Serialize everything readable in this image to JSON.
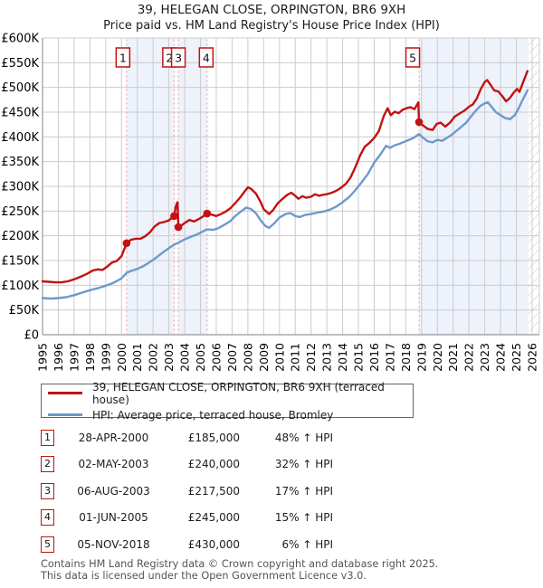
{
  "page": {
    "title_line1": "39, HELEGAN CLOSE, ORPINGTON, BR6 9XH",
    "title_line2": "Price paid vs. HM Land Registry's House Price Index (HPI)"
  },
  "chart_data": {
    "type": "line",
    "title": "Price paid vs. HM Land Registry's House Price Index (HPI)",
    "unit": "GBP thousands",
    "x_range": [
      1995,
      2026
    ],
    "ylim": [
      0,
      600
    ],
    "grid": true,
    "x_ticks": [
      1995,
      1996,
      1997,
      1998,
      1999,
      2000,
      2001,
      2002,
      2003,
      2004,
      2005,
      2006,
      2007,
      2008,
      2009,
      2010,
      2011,
      2012,
      2013,
      2014,
      2015,
      2016,
      2017,
      2018,
      2019,
      2020,
      2021,
      2022,
      2023,
      2024,
      2025,
      2026
    ],
    "y_tick_values": [
      0,
      50,
      100,
      150,
      200,
      250,
      300,
      350,
      400,
      450,
      500,
      550,
      600
    ],
    "y_tick_labels": [
      "£0",
      "£50K",
      "£100K",
      "£150K",
      "£200K",
      "£250K",
      "£300K",
      "£350K",
      "£400K",
      "£450K",
      "£500K",
      "£550K",
      "£600K"
    ],
    "series": [
      {
        "name": "39, HELEGAN CLOSE, ORPINGTON, BR6 9XH (terraced house)",
        "color": "#c21212",
        "points": [
          [
            1995.0,
            108
          ],
          [
            1995.4,
            107
          ],
          [
            1995.8,
            106
          ],
          [
            1996.2,
            106
          ],
          [
            1996.6,
            108
          ],
          [
            1997.0,
            112
          ],
          [
            1997.4,
            117
          ],
          [
            1997.8,
            123
          ],
          [
            1998.2,
            130
          ],
          [
            1998.5,
            132
          ],
          [
            1998.8,
            131
          ],
          [
            1999.1,
            138
          ],
          [
            1999.4,
            146
          ],
          [
            1999.7,
            149
          ],
          [
            2000.0,
            159
          ],
          [
            2000.32,
            185
          ],
          [
            2000.6,
            192
          ],
          [
            2000.9,
            194
          ],
          [
            2001.2,
            194
          ],
          [
            2001.5,
            199
          ],
          [
            2001.8,
            207
          ],
          [
            2002.1,
            219
          ],
          [
            2002.4,
            226
          ],
          [
            2002.7,
            228
          ],
          [
            2003.0,
            231
          ],
          [
            2003.33,
            240
          ],
          [
            2003.45,
            261
          ],
          [
            2003.55,
            268
          ],
          [
            2003.6,
            217.5
          ],
          [
            2003.8,
            221
          ],
          [
            2004.0,
            226
          ],
          [
            2004.3,
            232
          ],
          [
            2004.6,
            229
          ],
          [
            2004.9,
            234
          ],
          [
            2005.2,
            240
          ],
          [
            2005.42,
            245
          ],
          [
            2005.7,
            243
          ],
          [
            2006.0,
            240
          ],
          [
            2006.3,
            244
          ],
          [
            2006.6,
            249
          ],
          [
            2006.9,
            256
          ],
          [
            2007.2,
            266
          ],
          [
            2007.5,
            277
          ],
          [
            2007.8,
            290
          ],
          [
            2008.0,
            298
          ],
          [
            2008.2,
            295
          ],
          [
            2008.5,
            286
          ],
          [
            2008.8,
            269
          ],
          [
            2009.0,
            254
          ],
          [
            2009.35,
            244
          ],
          [
            2009.6,
            252
          ],
          [
            2009.9,
            266
          ],
          [
            2010.2,
            275
          ],
          [
            2010.5,
            283
          ],
          [
            2010.75,
            287
          ],
          [
            2011.0,
            281
          ],
          [
            2011.2,
            275
          ],
          [
            2011.45,
            280
          ],
          [
            2011.7,
            277
          ],
          [
            2012.0,
            279
          ],
          [
            2012.25,
            284
          ],
          [
            2012.5,
            281
          ],
          [
            2012.75,
            283
          ],
          [
            2013.0,
            284
          ],
          [
            2013.3,
            287
          ],
          [
            2013.6,
            291
          ],
          [
            2013.9,
            297
          ],
          [
            2014.2,
            305
          ],
          [
            2014.5,
            318
          ],
          [
            2014.8,
            338
          ],
          [
            2015.1,
            362
          ],
          [
            2015.4,
            380
          ],
          [
            2015.7,
            388
          ],
          [
            2016.0,
            398
          ],
          [
            2016.3,
            412
          ],
          [
            2016.6,
            442
          ],
          [
            2016.85,
            458
          ],
          [
            2017.05,
            444
          ],
          [
            2017.3,
            451
          ],
          [
            2017.55,
            448
          ],
          [
            2017.8,
            455
          ],
          [
            2018.05,
            458
          ],
          [
            2018.3,
            460
          ],
          [
            2018.55,
            456
          ],
          [
            2018.8,
            470
          ],
          [
            2018.84,
            430
          ],
          [
            2019.1,
            423
          ],
          [
            2019.4,
            416
          ],
          [
            2019.7,
            414
          ],
          [
            2019.95,
            426
          ],
          [
            2020.2,
            429
          ],
          [
            2020.5,
            421
          ],
          [
            2020.8,
            429
          ],
          [
            2021.1,
            441
          ],
          [
            2021.4,
            447
          ],
          [
            2021.7,
            453
          ],
          [
            2022.0,
            461
          ],
          [
            2022.25,
            466
          ],
          [
            2022.5,
            478
          ],
          [
            2022.75,
            497
          ],
          [
            2023.0,
            511
          ],
          [
            2023.15,
            515
          ],
          [
            2023.35,
            506
          ],
          [
            2023.6,
            494
          ],
          [
            2023.85,
            492
          ],
          [
            2024.1,
            483
          ],
          [
            2024.35,
            472
          ],
          [
            2024.6,
            479
          ],
          [
            2024.85,
            490
          ],
          [
            2025.05,
            497
          ],
          [
            2025.2,
            491
          ],
          [
            2025.4,
            508
          ],
          [
            2025.7,
            533
          ]
        ]
      },
      {
        "name": "HPI: Average price, terraced house, Bromley",
        "color": "#6d99cc",
        "points": [
          [
            1995.0,
            74
          ],
          [
            1995.5,
            73
          ],
          [
            1996.0,
            74
          ],
          [
            1996.5,
            76
          ],
          [
            1997.0,
            80
          ],
          [
            1997.5,
            85
          ],
          [
            1998.0,
            90
          ],
          [
            1998.5,
            94
          ],
          [
            1999.0,
            99
          ],
          [
            1999.5,
            105
          ],
          [
            2000.0,
            114
          ],
          [
            2000.32,
            125
          ],
          [
            2000.6,
            129
          ],
          [
            2001.0,
            133
          ],
          [
            2001.4,
            139
          ],
          [
            2001.8,
            147
          ],
          [
            2002.2,
            156
          ],
          [
            2002.6,
            166
          ],
          [
            2003.0,
            175
          ],
          [
            2003.33,
            182
          ],
          [
            2003.6,
            186
          ],
          [
            2004.0,
            193
          ],
          [
            2004.4,
            198
          ],
          [
            2004.8,
            203
          ],
          [
            2005.1,
            208
          ],
          [
            2005.42,
            213
          ],
          [
            2005.8,
            212
          ],
          [
            2006.1,
            215
          ],
          [
            2006.5,
            222
          ],
          [
            2006.9,
            230
          ],
          [
            2007.2,
            240
          ],
          [
            2007.6,
            250
          ],
          [
            2007.9,
            257
          ],
          [
            2008.2,
            254
          ],
          [
            2008.5,
            246
          ],
          [
            2008.8,
            232
          ],
          [
            2009.1,
            220
          ],
          [
            2009.35,
            216
          ],
          [
            2009.7,
            226
          ],
          [
            2010.0,
            237
          ],
          [
            2010.4,
            244
          ],
          [
            2010.7,
            246
          ],
          [
            2011.0,
            240
          ],
          [
            2011.3,
            238
          ],
          [
            2011.6,
            242
          ],
          [
            2012.0,
            244
          ],
          [
            2012.4,
            247
          ],
          [
            2012.8,
            249
          ],
          [
            2013.2,
            253
          ],
          [
            2013.6,
            259
          ],
          [
            2014.0,
            268
          ],
          [
            2014.4,
            278
          ],
          [
            2014.8,
            292
          ],
          [
            2015.2,
            308
          ],
          [
            2015.6,
            325
          ],
          [
            2016.0,
            348
          ],
          [
            2016.4,
            365
          ],
          [
            2016.75,
            382
          ],
          [
            2017.0,
            378
          ],
          [
            2017.3,
            383
          ],
          [
            2017.6,
            386
          ],
          [
            2017.9,
            390
          ],
          [
            2018.2,
            394
          ],
          [
            2018.5,
            398
          ],
          [
            2018.84,
            406
          ],
          [
            2019.1,
            398
          ],
          [
            2019.4,
            391
          ],
          [
            2019.7,
            389
          ],
          [
            2020.0,
            394
          ],
          [
            2020.3,
            392
          ],
          [
            2020.6,
            398
          ],
          [
            2020.9,
            404
          ],
          [
            2021.2,
            412
          ],
          [
            2021.5,
            420
          ],
          [
            2021.8,
            428
          ],
          [
            2022.1,
            440
          ],
          [
            2022.4,
            452
          ],
          [
            2022.7,
            462
          ],
          [
            2023.0,
            468
          ],
          [
            2023.2,
            470
          ],
          [
            2023.45,
            460
          ],
          [
            2023.7,
            450
          ],
          [
            2024.0,
            444
          ],
          [
            2024.3,
            438
          ],
          [
            2024.6,
            436
          ],
          [
            2024.9,
            444
          ],
          [
            2025.15,
            458
          ],
          [
            2025.35,
            472
          ],
          [
            2025.7,
            494
          ]
        ]
      }
    ],
    "sales_markers": [
      {
        "num": "1",
        "year": 2000.32,
        "price_k": 185
      },
      {
        "num": "2",
        "year": 2003.33,
        "price_k": 240
      },
      {
        "num": "3",
        "year": 2003.6,
        "price_k": 217.5
      },
      {
        "num": "4",
        "year": 2005.42,
        "price_k": 245
      },
      {
        "num": "5",
        "year": 2018.84,
        "price_k": 430
      }
    ],
    "ownership_bands": [
      [
        2000.32,
        2003.33
      ],
      [
        2003.6,
        2005.42
      ],
      [
        2018.84,
        2025.77
      ]
    ],
    "future_hatch_start": 2025.77,
    "colors": {
      "band": "#edf2fb",
      "grid": "#cccccc",
      "axis": "#999999",
      "dashed_marker": "#ee9999",
      "hatch": "#c8c8c8",
      "marker_box_border": "#c21212",
      "price_line": "#c21212",
      "hpi_line": "#6d99cc"
    }
  },
  "legend": {
    "items": [
      {
        "label": "39, HELEGAN CLOSE, ORPINGTON, BR6 9XH (terraced house)",
        "color": "#c21212"
      },
      {
        "label": "HPI: Average price, terraced house, Bromley",
        "color": "#6d99cc"
      }
    ]
  },
  "sales_table": {
    "rows": [
      {
        "num": "1",
        "date": "28-APR-2000",
        "price": "£185,000",
        "pct": "48% ↑ HPI"
      },
      {
        "num": "2",
        "date": "02-MAY-2003",
        "price": "£240,000",
        "pct": "32% ↑ HPI"
      },
      {
        "num": "3",
        "date": "06-AUG-2003",
        "price": "£217,500",
        "pct": "17% ↑ HPI"
      },
      {
        "num": "4",
        "date": "01-JUN-2005",
        "price": "£245,000",
        "pct": "15% ↑ HPI"
      },
      {
        "num": "5",
        "date": "05-NOV-2018",
        "price": "£430,000",
        "pct": "6% ↑ HPI"
      }
    ]
  },
  "footer": {
    "line1": "Contains HM Land Registry data © Crown copyright and database right 2025.",
    "line2": "This data is licensed under the Open Government Licence v3.0."
  }
}
